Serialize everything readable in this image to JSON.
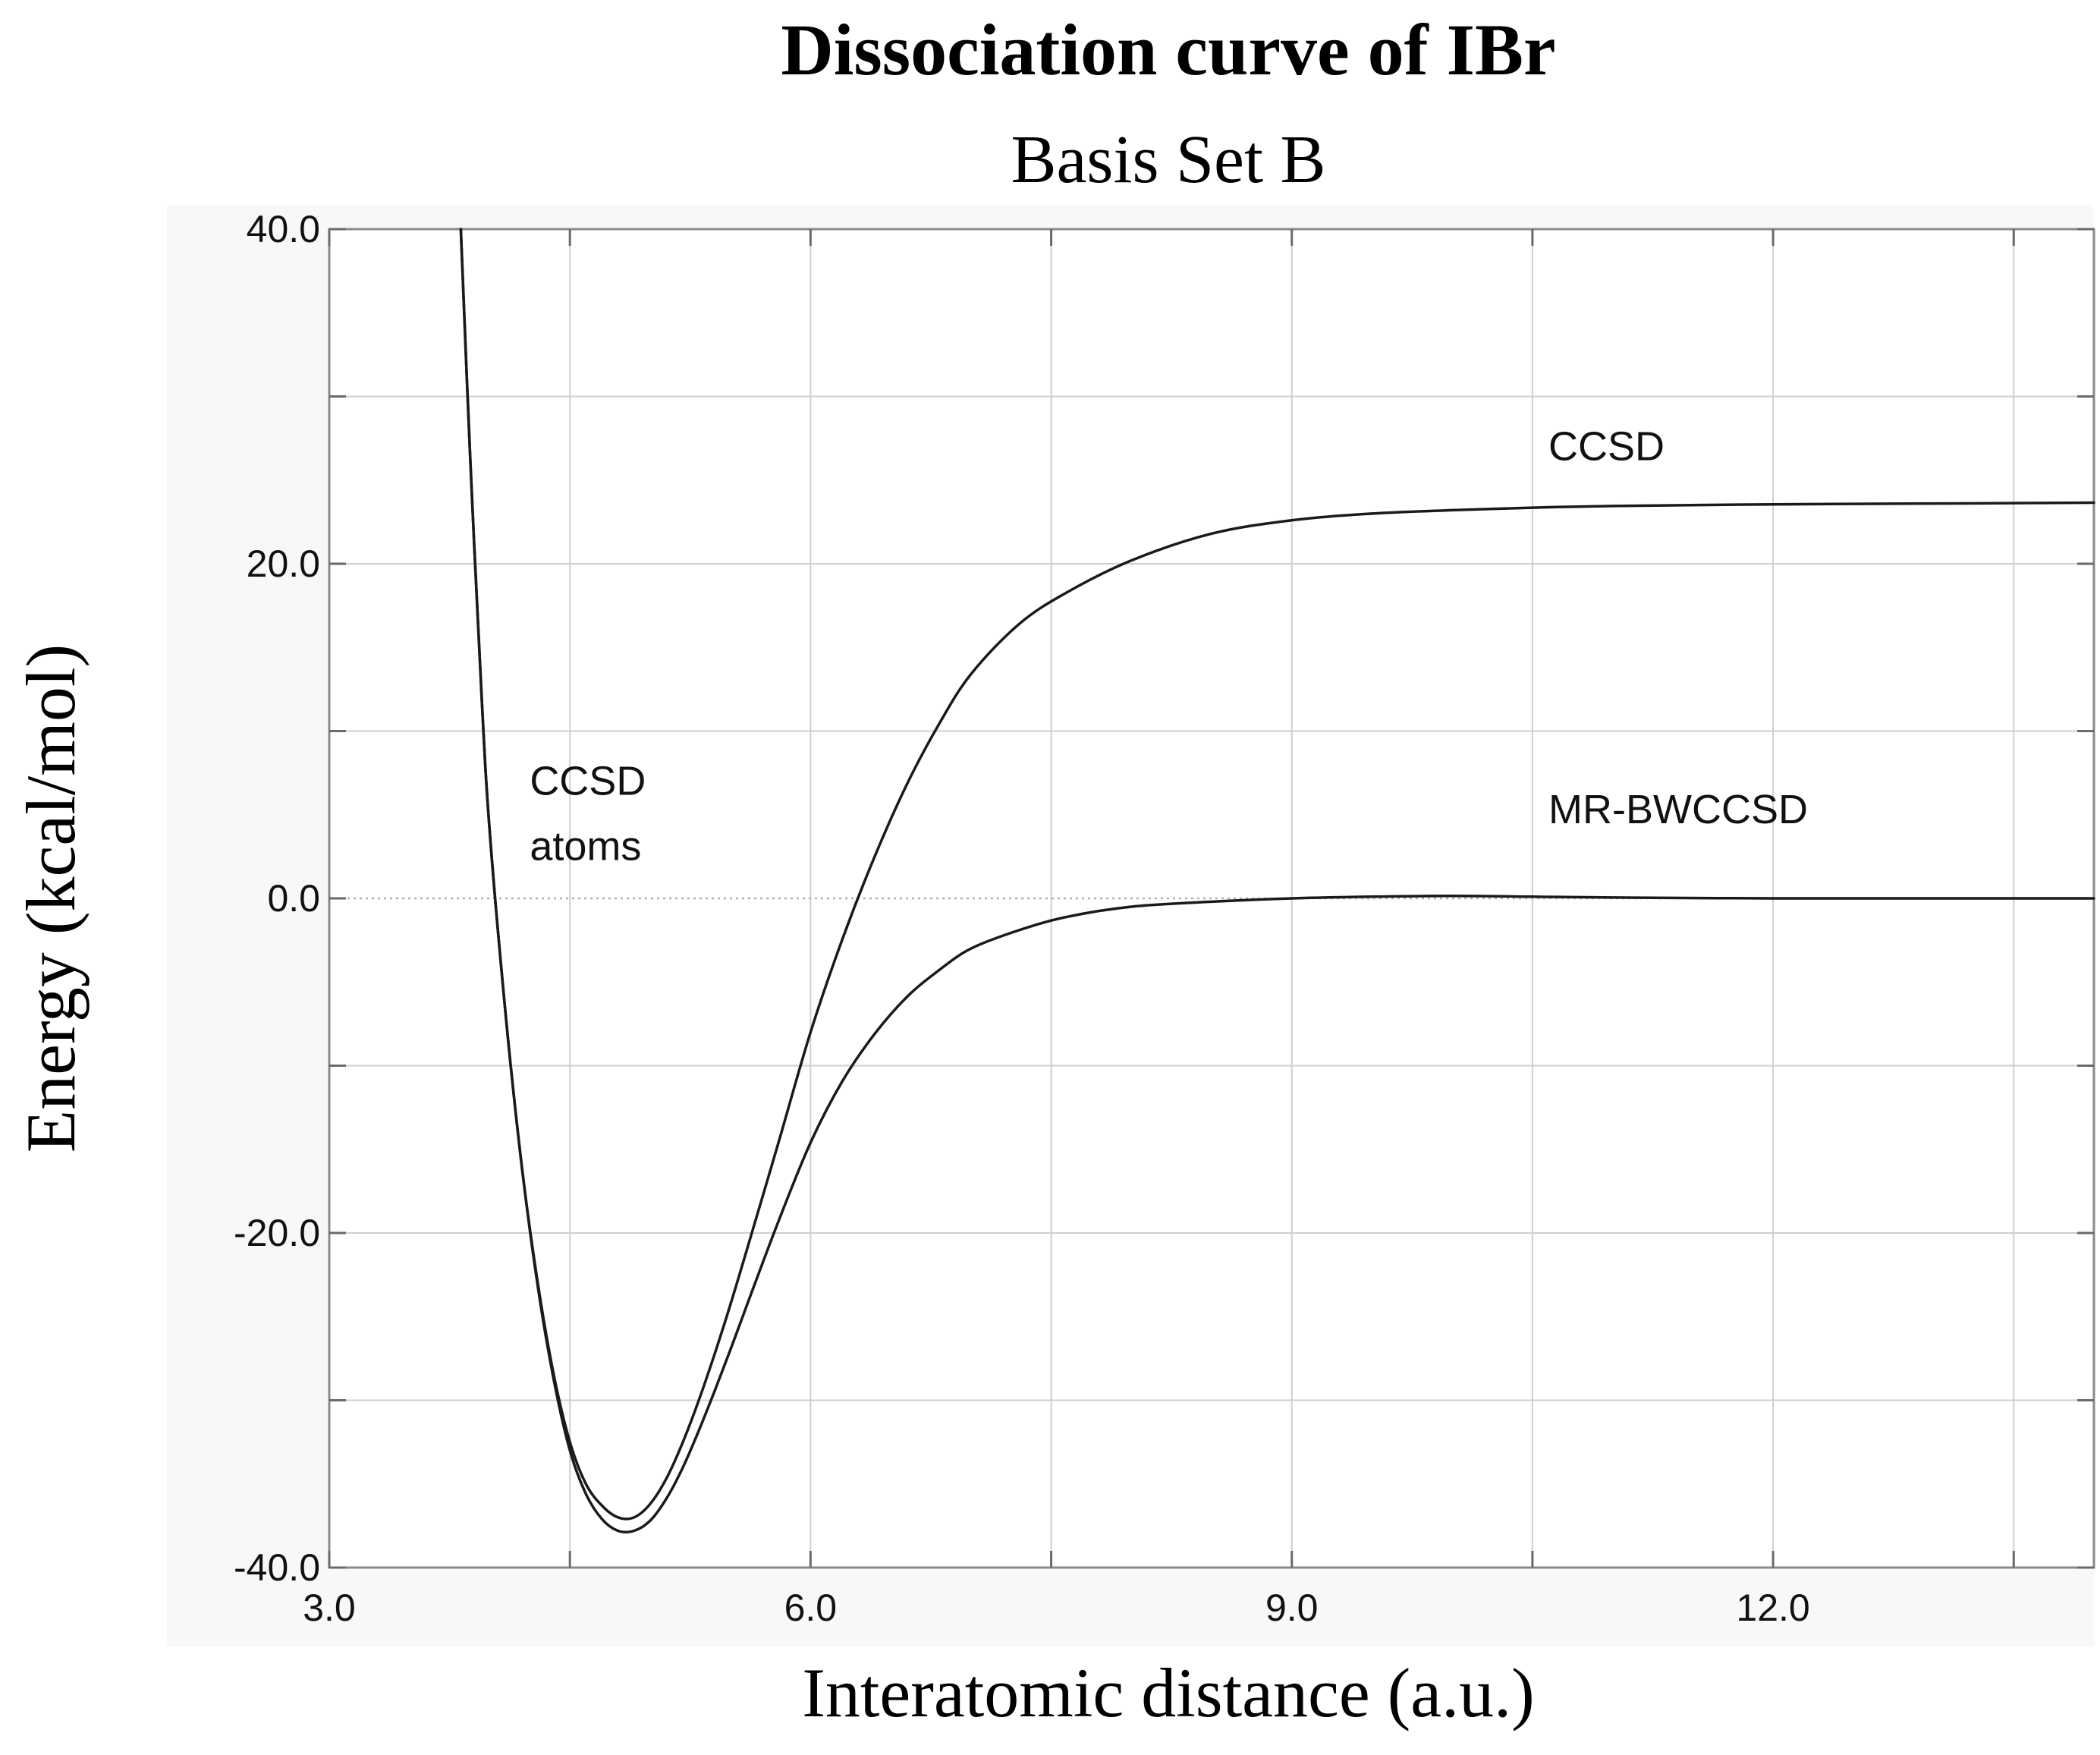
{
  "chart_data": {
    "type": "line",
    "title": "Dissociation curve of IBr",
    "subtitle": "Basis Set B",
    "xlabel": "Interatomic distance (a.u.)",
    "ylabel": "Energy (kcal/mol)",
    "xlim": [
      3.0,
      14.0
    ],
    "ylim": [
      -40.0,
      40.0
    ],
    "xticks": [
      {
        "value": 3.0,
        "label": "3.0"
      },
      {
        "value": 6.0,
        "label": "6.0"
      },
      {
        "value": 9.0,
        "label": "9.0"
      },
      {
        "value": 12.0,
        "label": "12.0"
      }
    ],
    "xminor": [
      4.5,
      7.5,
      10.5,
      13.5
    ],
    "yticks": [
      {
        "value": 40.0,
        "label": "40.0"
      },
      {
        "value": 20.0,
        "label": "20.0"
      },
      {
        "value": 0.0,
        "label": "0.0"
      },
      {
        "value": -20.0,
        "label": "-20.0"
      },
      {
        "value": -40.0,
        "label": "-40.0"
      }
    ],
    "yminor": [
      30.0,
      10.0,
      -10.0,
      -30.0
    ],
    "reference_line": {
      "y": 0.0,
      "style": "dotted"
    },
    "series": [
      {
        "name": "CCSD",
        "x": [
          3.82,
          3.88,
          3.95,
          4.0,
          4.1,
          4.2,
          4.3,
          4.4,
          4.5,
          4.6,
          4.7,
          4.8,
          4.9,
          5.0,
          5.1,
          5.2,
          5.3,
          5.4,
          5.5,
          5.6,
          5.8,
          6.0,
          6.2,
          6.4,
          6.6,
          6.8,
          7.0,
          7.3,
          7.6,
          8.0,
          8.5,
          9.0,
          9.5,
          10.0,
          10.5,
          11.0,
          12.0,
          13.0,
          14.0
        ],
        "y": [
          40.0,
          26.0,
          12.0,
          4.0,
          -7.0,
          -16.0,
          -23.0,
          -28.5,
          -32.5,
          -35.0,
          -36.3,
          -37.0,
          -37.0,
          -36.2,
          -34.7,
          -32.6,
          -30.1,
          -27.3,
          -24.3,
          -21.1,
          -14.6,
          -8.0,
          -2.4,
          2.5,
          6.8,
          10.4,
          13.4,
          16.4,
          18.3,
          20.2,
          21.8,
          22.6,
          23.0,
          23.2,
          23.35,
          23.45,
          23.55,
          23.6,
          23.65
        ]
      },
      {
        "name": "MR-BWCCSD",
        "x": [
          3.82,
          3.88,
          3.95,
          4.0,
          4.1,
          4.2,
          4.3,
          4.4,
          4.5,
          4.6,
          4.7,
          4.8,
          4.9,
          5.0,
          5.1,
          5.2,
          5.3,
          5.4,
          5.5,
          5.6,
          5.8,
          6.0,
          6.2,
          6.4,
          6.6,
          6.8,
          7.0,
          7.3,
          7.6,
          8.0,
          8.5,
          9.0,
          9.5,
          10.0,
          10.5,
          11.0,
          12.0,
          13.0,
          14.0
        ],
        "y": [
          40.0,
          26.0,
          12.0,
          4.0,
          -7.0,
          -16.0,
          -23.2,
          -28.8,
          -33.0,
          -35.6,
          -37.1,
          -37.8,
          -37.8,
          -37.2,
          -35.9,
          -34.1,
          -31.9,
          -29.5,
          -27.0,
          -24.4,
          -19.3,
          -14.6,
          -10.9,
          -8.1,
          -5.9,
          -4.3,
          -3.0,
          -1.9,
          -1.1,
          -0.5,
          -0.2,
          0.0,
          0.1,
          0.15,
          0.1,
          0.05,
          0.0,
          0.0,
          0.0
        ]
      }
    ],
    "annotations": [
      {
        "text": "CCSD",
        "x": 10.6,
        "y": 26.2
      },
      {
        "text": "MR-BWCCSD",
        "x": 10.6,
        "y": 4.5
      },
      {
        "text": "CCSD",
        "x": 4.25,
        "y": 6.2
      },
      {
        "text": "atoms",
        "x": 4.25,
        "y": 2.3
      }
    ]
  }
}
